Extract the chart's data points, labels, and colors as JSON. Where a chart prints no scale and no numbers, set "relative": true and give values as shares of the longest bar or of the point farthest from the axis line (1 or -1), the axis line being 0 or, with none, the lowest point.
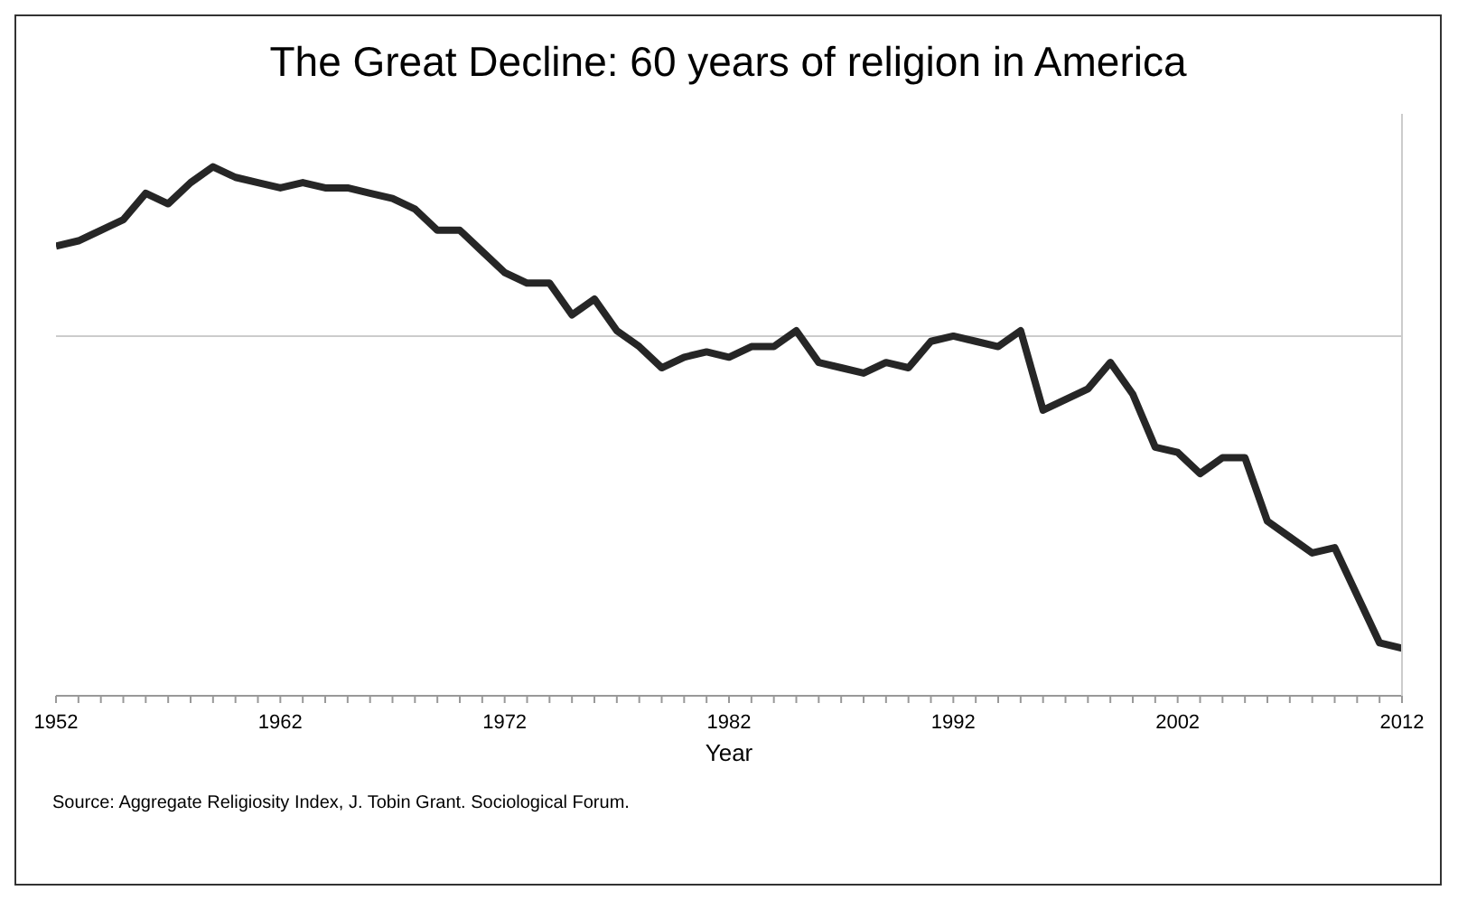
{
  "chart_data": {
    "type": "line",
    "title": "The Great Decline: 60 years of religion in America",
    "xlabel": "Year",
    "relative": true,
    "x": [
      1952,
      1953,
      1954,
      1955,
      1956,
      1957,
      1958,
      1959,
      1960,
      1961,
      1962,
      1963,
      1964,
      1965,
      1966,
      1967,
      1968,
      1969,
      1970,
      1971,
      1972,
      1973,
      1974,
      1975,
      1976,
      1977,
      1978,
      1979,
      1980,
      1981,
      1982,
      1983,
      1984,
      1985,
      1986,
      1987,
      1988,
      1989,
      1990,
      1991,
      1992,
      1993,
      1994,
      1995,
      1996,
      1997,
      1998,
      1999,
      2000,
      2001,
      2002,
      2003,
      2004,
      2005,
      2006,
      2007,
      2008,
      2009,
      2010,
      2011,
      2012
    ],
    "series": [
      {
        "color": "#262626",
        "values": [
          0.85,
          0.86,
          0.88,
          0.9,
          0.95,
          0.93,
          0.97,
          1,
          0.98,
          0.97,
          0.96,
          0.97,
          0.96,
          0.96,
          0.95,
          0.94,
          0.92,
          0.88,
          0.88,
          0.84,
          0.8,
          0.78,
          0.78,
          0.72,
          0.75,
          0.69,
          0.66,
          0.62,
          0.64,
          0.65,
          0.64,
          0.66,
          0.66,
          0.69,
          0.63,
          0.62,
          0.61,
          0.63,
          0.62,
          0.67,
          0.68,
          0.67,
          0.66,
          0.69,
          0.54,
          0.56,
          0.58,
          0.63,
          0.57,
          0.47,
          0.46,
          0.42,
          0.45,
          0.45,
          0.33,
          0.3,
          0.27,
          0.28,
          0.19,
          0.1,
          0.09
        ]
      }
    ],
    "xlim": [
      1952,
      2012
    ],
    "xticks": [
      1952,
      {
        "value": 1953,
        "label": null
      },
      {
        "value": 1954,
        "label": null
      },
      {
        "value": 1955,
        "label": null
      },
      {
        "value": 1956,
        "label": null
      },
      {
        "value": 1957,
        "label": null
      },
      {
        "value": 1958,
        "label": null
      },
      {
        "value": 1959,
        "label": null
      },
      {
        "value": 1960,
        "label": null
      },
      {
        "value": 1961,
        "label": null
      },
      1962,
      {
        "value": 1963,
        "label": null
      },
      {
        "value": 1964,
        "label": null
      },
      {
        "value": 1965,
        "label": null
      },
      {
        "value": 1966,
        "label": null
      },
      {
        "value": 1967,
        "label": null
      },
      {
        "value": 1968,
        "label": null
      },
      {
        "value": 1969,
        "label": null
      },
      {
        "value": 1970,
        "label": null
      },
      {
        "value": 1971,
        "label": null
      },
      1972,
      {
        "value": 1973,
        "label": null
      },
      {
        "value": 1974,
        "label": null
      },
      {
        "value": 1975,
        "label": null
      },
      {
        "value": 1976,
        "label": null
      },
      {
        "value": 1977,
        "label": null
      },
      {
        "value": 1978,
        "label": null
      },
      {
        "value": 1979,
        "label": null
      },
      {
        "value": 1980,
        "label": null
      },
      {
        "value": 1981,
        "label": null
      },
      1982,
      {
        "value": 1983,
        "label": null
      },
      {
        "value": 1984,
        "label": null
      },
      {
        "value": 1985,
        "label": null
      },
      {
        "value": 1986,
        "label": null
      },
      {
        "value": 1987,
        "label": null
      },
      {
        "value": 1988,
        "label": null
      },
      {
        "value": 1989,
        "label": null
      },
      {
        "value": 1990,
        "label": null
      },
      {
        "value": 1991,
        "label": null
      },
      1992,
      {
        "value": 1993,
        "label": null
      },
      {
        "value": 1994,
        "label": null
      },
      {
        "value": 1995,
        "label": null
      },
      {
        "value": 1996,
        "label": null
      },
      {
        "value": 1997,
        "label": null
      },
      {
        "value": 1998,
        "label": null
      },
      {
        "value": 1999,
        "label": null
      },
      {
        "value": 2000,
        "label": null
      },
      {
        "value": 2001,
        "label": null
      },
      2002,
      {
        "value": 2003,
        "label": null
      },
      {
        "value": 2004,
        "label": null
      },
      {
        "value": 2005,
        "label": null
      },
      {
        "value": 2006,
        "label": null
      },
      {
        "value": 2007,
        "label": null
      },
      {
        "value": 2008,
        "label": null
      },
      {
        "value": 2009,
        "label": null
      },
      {
        "value": 2010,
        "label": null
      },
      {
        "value": 2011,
        "label": null
      },
      2012
    ],
    "ref_lines": [
      {
        "axis": "y",
        "value": 0.68,
        "color": "#cccccc"
      }
    ],
    "grid": false,
    "legend": false,
    "marker": "none",
    "line_style": "solid",
    "annotations": [
      "Source: Aggregate Religiosity Index, J. Tobin Grant. Sociological Forum."
    ]
  }
}
